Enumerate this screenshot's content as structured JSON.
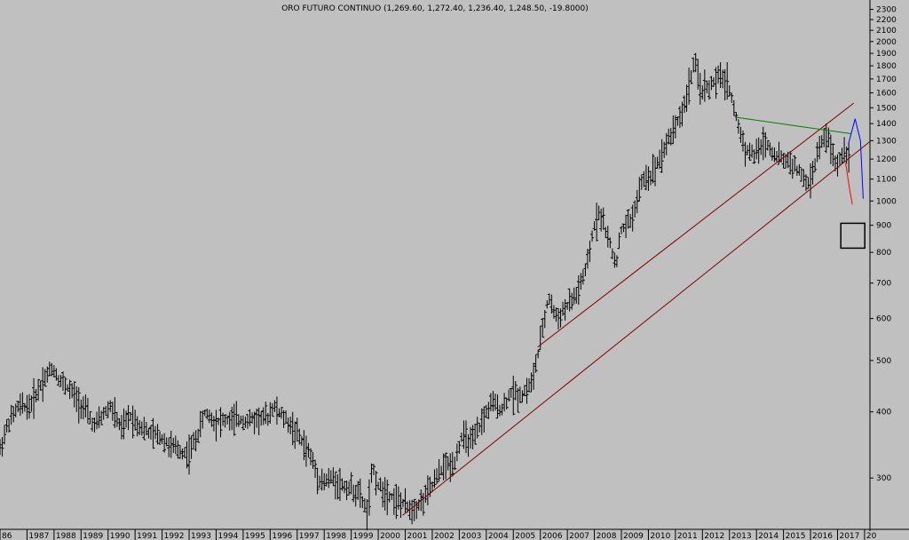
{
  "chart_data": {
    "type": "bar",
    "subtype": "ohlc",
    "title": "ORO FUTURO CONTINUO (1,269.60, 1,272.40, 1,236.40, 1,248.50, -19.8000)",
    "y_scale": "log",
    "ylim": [
      240,
      2350
    ],
    "xlim": [
      1986.0,
      2018.2
    ],
    "x_tick_labels": [
      "86",
      "1987",
      "1988",
      "1989",
      "1990",
      "1991",
      "1992",
      "1993",
      "1994",
      "1995",
      "1996",
      "1997",
      "1998",
      "1999",
      "2000",
      "2001",
      "2002",
      "2003",
      "2004",
      "2005",
      "2006",
      "2007",
      "2008",
      "2009",
      "2010",
      "2011",
      "2012",
      "2013",
      "2014",
      "2015",
      "2016",
      "2017",
      "20"
    ],
    "y_tick_labels": [
      "2300",
      "2200",
      "2100",
      "2000",
      "1900",
      "1800",
      "1700",
      "1600",
      "1500",
      "1400",
      "1300",
      "1200",
      "1100",
      "1000",
      "900",
      "800",
      "700",
      "600",
      "500",
      "400",
      "300"
    ],
    "grid": false,
    "legend": "none",
    "price_path": [
      [
        1986.0,
        340
      ],
      [
        1986.3,
        380
      ],
      [
        1986.7,
        410
      ],
      [
        1987.1,
        410
      ],
      [
        1987.6,
        460
      ],
      [
        1987.95,
        485
      ],
      [
        1988.2,
        460
      ],
      [
        1988.6,
        440
      ],
      [
        1988.9,
        420
      ],
      [
        1989.2,
        400
      ],
      [
        1989.5,
        375
      ],
      [
        1989.9,
        400
      ],
      [
        1990.1,
        410
      ],
      [
        1990.5,
        370
      ],
      [
        1990.8,
        395
      ],
      [
        1991.1,
        380
      ],
      [
        1991.5,
        365
      ],
      [
        1991.9,
        360
      ],
      [
        1992.3,
        345
      ],
      [
        1992.8,
        335
      ],
      [
        1993.0,
        335
      ],
      [
        1993.3,
        360
      ],
      [
        1993.6,
        400
      ],
      [
        1993.9,
        385
      ],
      [
        1994.3,
        385
      ],
      [
        1994.8,
        387
      ],
      [
        1995.2,
        385
      ],
      [
        1995.6,
        390
      ],
      [
        1995.9,
        390
      ],
      [
        1996.1,
        410
      ],
      [
        1996.5,
        390
      ],
      [
        1996.9,
        370
      ],
      [
        1997.2,
        350
      ],
      [
        1997.5,
        330
      ],
      [
        1997.8,
        300
      ],
      [
        1998.0,
        295
      ],
      [
        1998.3,
        300
      ],
      [
        1998.7,
        290
      ],
      [
        1999.0,
        287
      ],
      [
        1999.3,
        280
      ],
      [
        1999.6,
        258
      ],
      [
        1999.8,
        315
      ],
      [
        2000.0,
        290
      ],
      [
        2000.4,
        280
      ],
      [
        2000.8,
        270
      ],
      [
        2001.2,
        262
      ],
      [
        2001.6,
        270
      ],
      [
        2002.0,
        290
      ],
      [
        2002.4,
        315
      ],
      [
        2002.8,
        320
      ],
      [
        2003.1,
        360
      ],
      [
        2003.5,
        350
      ],
      [
        2003.9,
        390
      ],
      [
        2004.2,
        415
      ],
      [
        2004.6,
        405
      ],
      [
        2004.9,
        435
      ],
      [
        2005.3,
        430
      ],
      [
        2005.7,
        455
      ],
      [
        2006.0,
        540
      ],
      [
        2006.3,
        660
      ],
      [
        2006.6,
        600
      ],
      [
        2006.9,
        625
      ],
      [
        2007.3,
        660
      ],
      [
        2007.7,
        740
      ],
      [
        2008.0,
        900
      ],
      [
        2008.2,
        960
      ],
      [
        2008.5,
        850
      ],
      [
        2008.8,
        760
      ],
      [
        2009.0,
        880
      ],
      [
        2009.4,
        930
      ],
      [
        2009.8,
        1100
      ],
      [
        2010.1,
        1120
      ],
      [
        2010.5,
        1230
      ],
      [
        2010.9,
        1360
      ],
      [
        2011.3,
        1490
      ],
      [
        2011.7,
        1830
      ],
      [
        2011.95,
        1620
      ],
      [
        2012.3,
        1650
      ],
      [
        2012.7,
        1720
      ],
      [
        2012.95,
        1670
      ],
      [
        2013.3,
        1400
      ],
      [
        2013.6,
        1250
      ],
      [
        2013.95,
        1220
      ],
      [
        2014.3,
        1300
      ],
      [
        2014.7,
        1220
      ],
      [
        2014.95,
        1200
      ],
      [
        2015.3,
        1180
      ],
      [
        2015.7,
        1110
      ],
      [
        2015.95,
        1070
      ],
      [
        2016.3,
        1250
      ],
      [
        2016.6,
        1340
      ],
      [
        2016.95,
        1160
      ],
      [
        2017.2,
        1240
      ],
      [
        2017.45,
        1250
      ]
    ],
    "trendlines": [
      {
        "color": "#800000",
        "points": [
          [
            2000.9,
            255
          ],
          [
            2018.2,
            1295
          ]
        ]
      },
      {
        "color": "#800000",
        "points": [
          [
            2005.9,
            530
          ],
          [
            2017.6,
            1530
          ]
        ]
      },
      {
        "color": "#008000",
        "points": [
          [
            2013.2,
            1440
          ],
          [
            2017.5,
            1340
          ]
        ]
      }
    ],
    "projections": [
      {
        "color": "#ff0000",
        "points": [
          [
            2017.3,
            1180
          ],
          [
            2017.45,
            1050
          ],
          [
            2017.55,
            985
          ]
        ]
      },
      {
        "color": "#0000ff",
        "points": [
          [
            2017.4,
            1280
          ],
          [
            2017.65,
            1430
          ],
          [
            2017.85,
            1300
          ],
          [
            2017.95,
            1010
          ]
        ]
      }
    ],
    "annotation_box": {
      "color": "#000000",
      "center": [
        2017.55,
        860
      ]
    }
  }
}
